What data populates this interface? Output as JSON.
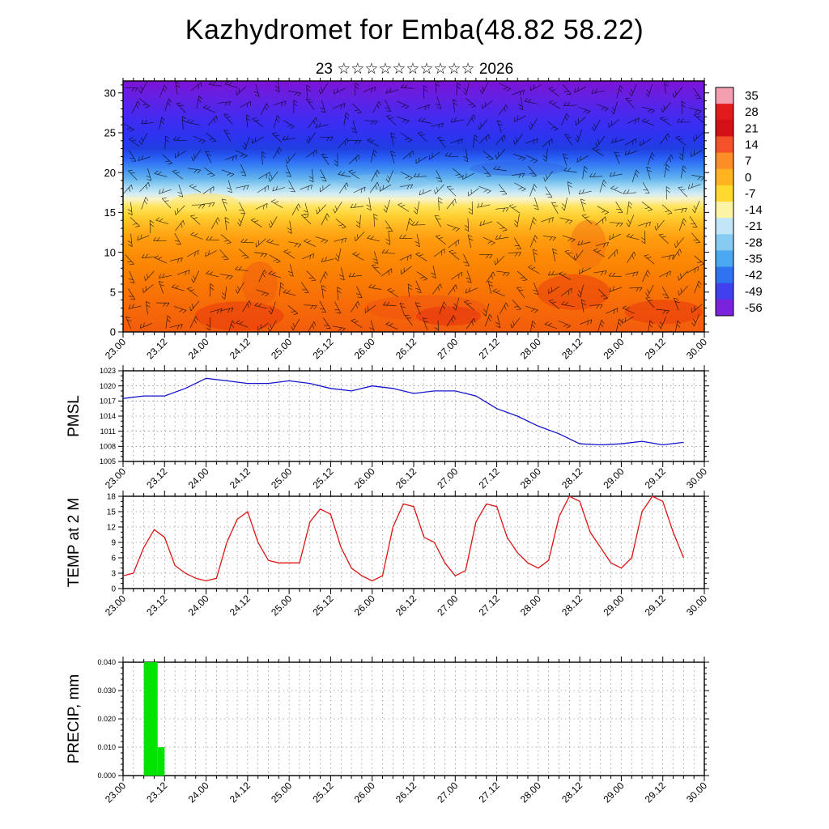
{
  "header": {
    "title": "Kazhydromet for Emba(48.82 58.22)",
    "subtitle": "23 ☆☆☆☆☆☆☆☆☆☆ 2026"
  },
  "time_axis": {
    "tick_labels": [
      "23.00",
      "23.12",
      "24.00",
      "24.12",
      "25.00",
      "25.12",
      "26.00",
      "26.12",
      "27.00",
      "27.12",
      "28.00",
      "28.12",
      "29.00",
      "29.12",
      "30.00"
    ],
    "major_step_hours": 12,
    "minor_step_hours": 3,
    "total_hours": 168
  },
  "colorbar": {
    "labels": [
      "35",
      "28",
      "21",
      "14",
      "7",
      "0",
      "-7",
      "-14",
      "-21",
      "-28",
      "-35",
      "-42",
      "-49",
      "-56"
    ],
    "colors": [
      "#f29eb0",
      "#e31a1c",
      "#d40f16",
      "#f4502a",
      "#fd8d27",
      "#ffb41f",
      "#ffd92b",
      "#fcf4a4",
      "#c2e6f7",
      "#86ccf2",
      "#4aa9f0",
      "#2f72f2",
      "#4040f0",
      "#7a22dd"
    ]
  },
  "chart_data": [
    {
      "type": "heatmap",
      "name": "time-height-cross-section",
      "description": "Temperature (deg C, shaded per colorbar) with wind barbs, time vs model level",
      "ylabel": "",
      "ylim": [
        0,
        31.5
      ],
      "yticks": [
        0,
        5,
        10,
        15,
        20,
        25,
        30
      ],
      "ytick_labels": [
        "0",
        "5",
        "10",
        "15",
        "20",
        "25",
        "30"
      ],
      "y_minor_step": 1,
      "profile_heights": [
        0,
        3,
        6,
        10,
        13,
        15,
        16.5,
        18,
        21,
        24,
        27,
        30
      ],
      "profile_temps_c": [
        19,
        16,
        13,
        8,
        3,
        -2,
        -9,
        -17,
        -28,
        -40,
        -49,
        -55
      ],
      "shading_gradient": [
        [
          "0%",
          "#7d12d6"
        ],
        [
          "5%",
          "#6a1ee0"
        ],
        [
          "11%",
          "#5226ea"
        ],
        [
          "17%",
          "#3a2ef2"
        ],
        [
          "23%",
          "#2a35ee"
        ],
        [
          "27%",
          "#1f3fe0"
        ],
        [
          "31%",
          "#2a62f5"
        ],
        [
          "35%",
          "#3f8df2"
        ],
        [
          "39%",
          "#66b5ee"
        ],
        [
          "42%",
          "#9ed7f2"
        ],
        [
          "45%",
          "#d3ecf4"
        ],
        [
          "47%",
          "#f7f3c8"
        ],
        [
          "50%",
          "#ffe45e"
        ],
        [
          "54%",
          "#ffcf30"
        ],
        [
          "58%",
          "#ffb520"
        ],
        [
          "63%",
          "#ff9d0e"
        ],
        [
          "70%",
          "#fc8b06"
        ],
        [
          "80%",
          "#f97a04"
        ],
        [
          "90%",
          "#f66a08"
        ],
        [
          "100%",
          "#f25c0c"
        ]
      ],
      "warm_cores": [
        [
          0.2,
          2,
          55,
          18,
          "#e8380c",
          0.55
        ],
        [
          0.235,
          6,
          22,
          28,
          "#ef5a10",
          0.5
        ],
        [
          0.52,
          3,
          75,
          16,
          "#ef5210",
          0.5
        ],
        [
          0.56,
          2,
          40,
          12,
          "#e63310",
          0.6
        ],
        [
          0.775,
          5,
          45,
          22,
          "#e83a0e",
          0.5
        ],
        [
          0.8,
          11,
          22,
          30,
          "#f06a12",
          0.45
        ],
        [
          0.93,
          2.5,
          48,
          15,
          "#e8380c",
          0.55
        ],
        [
          0.14,
          16.2,
          42,
          12,
          "#ffe45e",
          0.5
        ],
        [
          0.45,
          18.8,
          55,
          10,
          "#7fc2ee",
          0.45
        ],
        [
          0.68,
          20.5,
          60,
          9,
          "#2a55e8",
          0.35
        ]
      ]
    },
    {
      "type": "line",
      "name": "pmsl",
      "ylabel": "PMSL",
      "color": "#1414cc",
      "ylim": [
        1005,
        1023
      ],
      "yticks": [
        1005,
        1008,
        1011,
        1014,
        1017,
        1020,
        1023
      ],
      "ytick_labels": [
        "1005",
        "1008",
        "1011",
        "1014",
        "1017",
        "1020",
        "1023"
      ],
      "y_minor_step": 1,
      "x_hours": [
        0,
        6,
        12,
        18,
        24,
        30,
        36,
        42,
        48,
        54,
        60,
        66,
        72,
        78,
        84,
        90,
        96,
        102,
        108,
        114,
        120,
        126,
        132,
        138,
        144,
        150,
        156,
        162
      ],
      "values": [
        1017.5,
        1018,
        1018,
        1019.5,
        1021.5,
        1021,
        1020.5,
        1020.5,
        1021,
        1020.5,
        1019.5,
        1019,
        1020,
        1019.5,
        1018.5,
        1019,
        1019,
        1018,
        1015.5,
        1014,
        1012,
        1010.5,
        1008.5,
        1008.3,
        1008.5,
        1009,
        1008.3,
        1008.8
      ]
    },
    {
      "type": "line",
      "name": "temp-2m",
      "ylabel": "TEMP at 2 M",
      "color": "#dc1414",
      "ylim": [
        0,
        18
      ],
      "yticks": [
        0,
        3,
        6,
        9,
        12,
        15,
        18
      ],
      "ytick_labels": [
        "0",
        "3",
        "6",
        "9",
        "12",
        "15",
        "18"
      ],
      "y_minor_step": 1,
      "x_hours": [
        0,
        3,
        6,
        9,
        12,
        15,
        18,
        21,
        24,
        27,
        30,
        33,
        36,
        39,
        42,
        45,
        48,
        51,
        54,
        57,
        60,
        63,
        66,
        69,
        72,
        75,
        78,
        81,
        84,
        87,
        90,
        93,
        96,
        99,
        102,
        105,
        108,
        111,
        114,
        117,
        120,
        123,
        126,
        129,
        132,
        135,
        138,
        141,
        144,
        147,
        150,
        153,
        156,
        159,
        162
      ],
      "values": [
        2.5,
        3,
        8,
        11.5,
        10,
        4.5,
        3,
        2,
        1.5,
        2,
        9,
        13.5,
        15,
        9,
        5.5,
        5,
        5,
        5,
        13,
        15.5,
        14.5,
        8,
        4,
        2.5,
        1.5,
        2.5,
        12,
        16.5,
        16,
        10,
        9,
        5,
        2.5,
        3.5,
        13,
        16.5,
        16,
        10,
        7,
        5,
        4,
        5.5,
        14,
        18,
        17,
        11,
        8,
        5,
        4,
        6,
        15,
        18,
        17,
        11,
        6
      ]
    },
    {
      "type": "bar",
      "name": "precip",
      "ylabel": "PRECIP, mm",
      "color": "#00e400",
      "ylim": [
        0,
        0.04
      ],
      "yticks": [
        0,
        0.01,
        0.02,
        0.03,
        0.04
      ],
      "ytick_labels": [
        "0.000",
        "0.010",
        "0.020",
        "0.030",
        "0.040"
      ],
      "y_minor_step": 0.002,
      "bars": [
        {
          "start_hour": 6,
          "end_hour": 10,
          "value": 0.04
        },
        {
          "start_hour": 10,
          "end_hour": 12,
          "value": 0.01
        }
      ]
    }
  ]
}
